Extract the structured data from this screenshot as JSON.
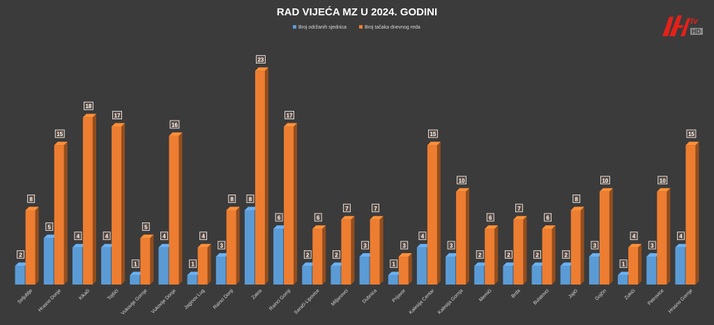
{
  "chart_data": {
    "type": "bar",
    "title": "RAD VIJEĆA MZ U 2024. GODINI",
    "legend_position": "top-center",
    "grid": false,
    "ylim": [
      0,
      25
    ],
    "categories": [
      "Seljublje",
      "Hrasno Donje",
      "Kikači",
      "Tojšići",
      "Vukovije Gornje",
      "Vukovije Donje",
      "Jaginov Lug",
      "Rainci Donji",
      "Zatos",
      "Rainci Gornji",
      "Sarači-Lipovice",
      "Miljanovci",
      "Dubnica",
      "Prijavor",
      "Kalesija Centar",
      "Kalesija Gornja",
      "Memići",
      "Brda",
      "Bulatovci",
      "Jajići",
      "Gojčin",
      "Zukići",
      "Petrovice",
      "Hrasno Gornje"
    ],
    "series": [
      {
        "name": "Broj održanih sjednica",
        "color": "#5b9bd5",
        "values": [
          2,
          5,
          4,
          4,
          1,
          4,
          1,
          3,
          8,
          6,
          2,
          2,
          3,
          1,
          4,
          3,
          2,
          2,
          2,
          2,
          3,
          1,
          3,
          4
        ]
      },
      {
        "name": "Broj tačaka dnevnog reda",
        "color": "#ed7d31",
        "values": [
          8,
          15,
          18,
          17,
          5,
          16,
          4,
          8,
          23,
          17,
          6,
          7,
          7,
          3,
          15,
          10,
          6,
          7,
          6,
          8,
          10,
          4,
          10,
          15
        ]
      }
    ]
  },
  "logo": {
    "text_tv": "tv",
    "text_hd": "HD",
    "accent": "#e32119"
  }
}
